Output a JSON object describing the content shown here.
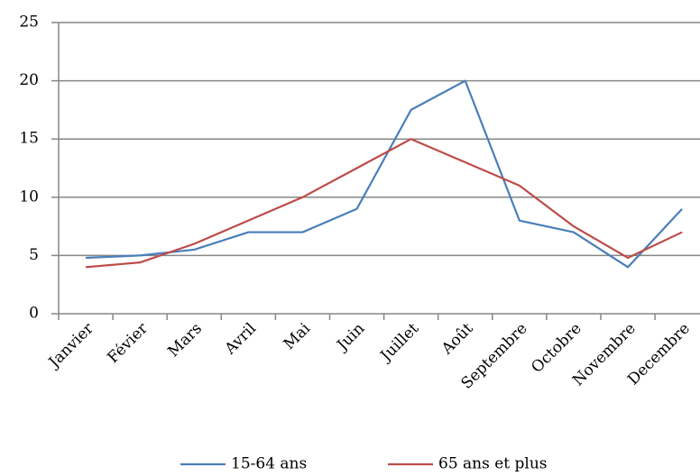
{
  "chart_data": {
    "type": "line",
    "categories": [
      "Janvier",
      "Févier",
      "Mars",
      "Avril",
      "Mai",
      "Juin",
      "Juillet",
      "Août",
      "Septembre",
      "Octobre",
      "Novembre",
      "Decembre"
    ],
    "series": [
      {
        "name": "15-64 ans",
        "color": "#4a7ebb",
        "values": [
          4.8,
          5,
          5.5,
          7,
          7,
          9,
          17.5,
          20,
          8,
          7,
          4,
          9
        ]
      },
      {
        "name": "65 ans et plus",
        "color": "#be4b48",
        "values": [
          4,
          4.4,
          6,
          8,
          10,
          12.5,
          15,
          13,
          11,
          7.5,
          4.8,
          7
        ]
      }
    ],
    "ylim": [
      0,
      25
    ],
    "yticks": [
      0,
      5,
      10,
      15,
      20,
      25
    ],
    "grid": true,
    "legend": "bottom"
  }
}
